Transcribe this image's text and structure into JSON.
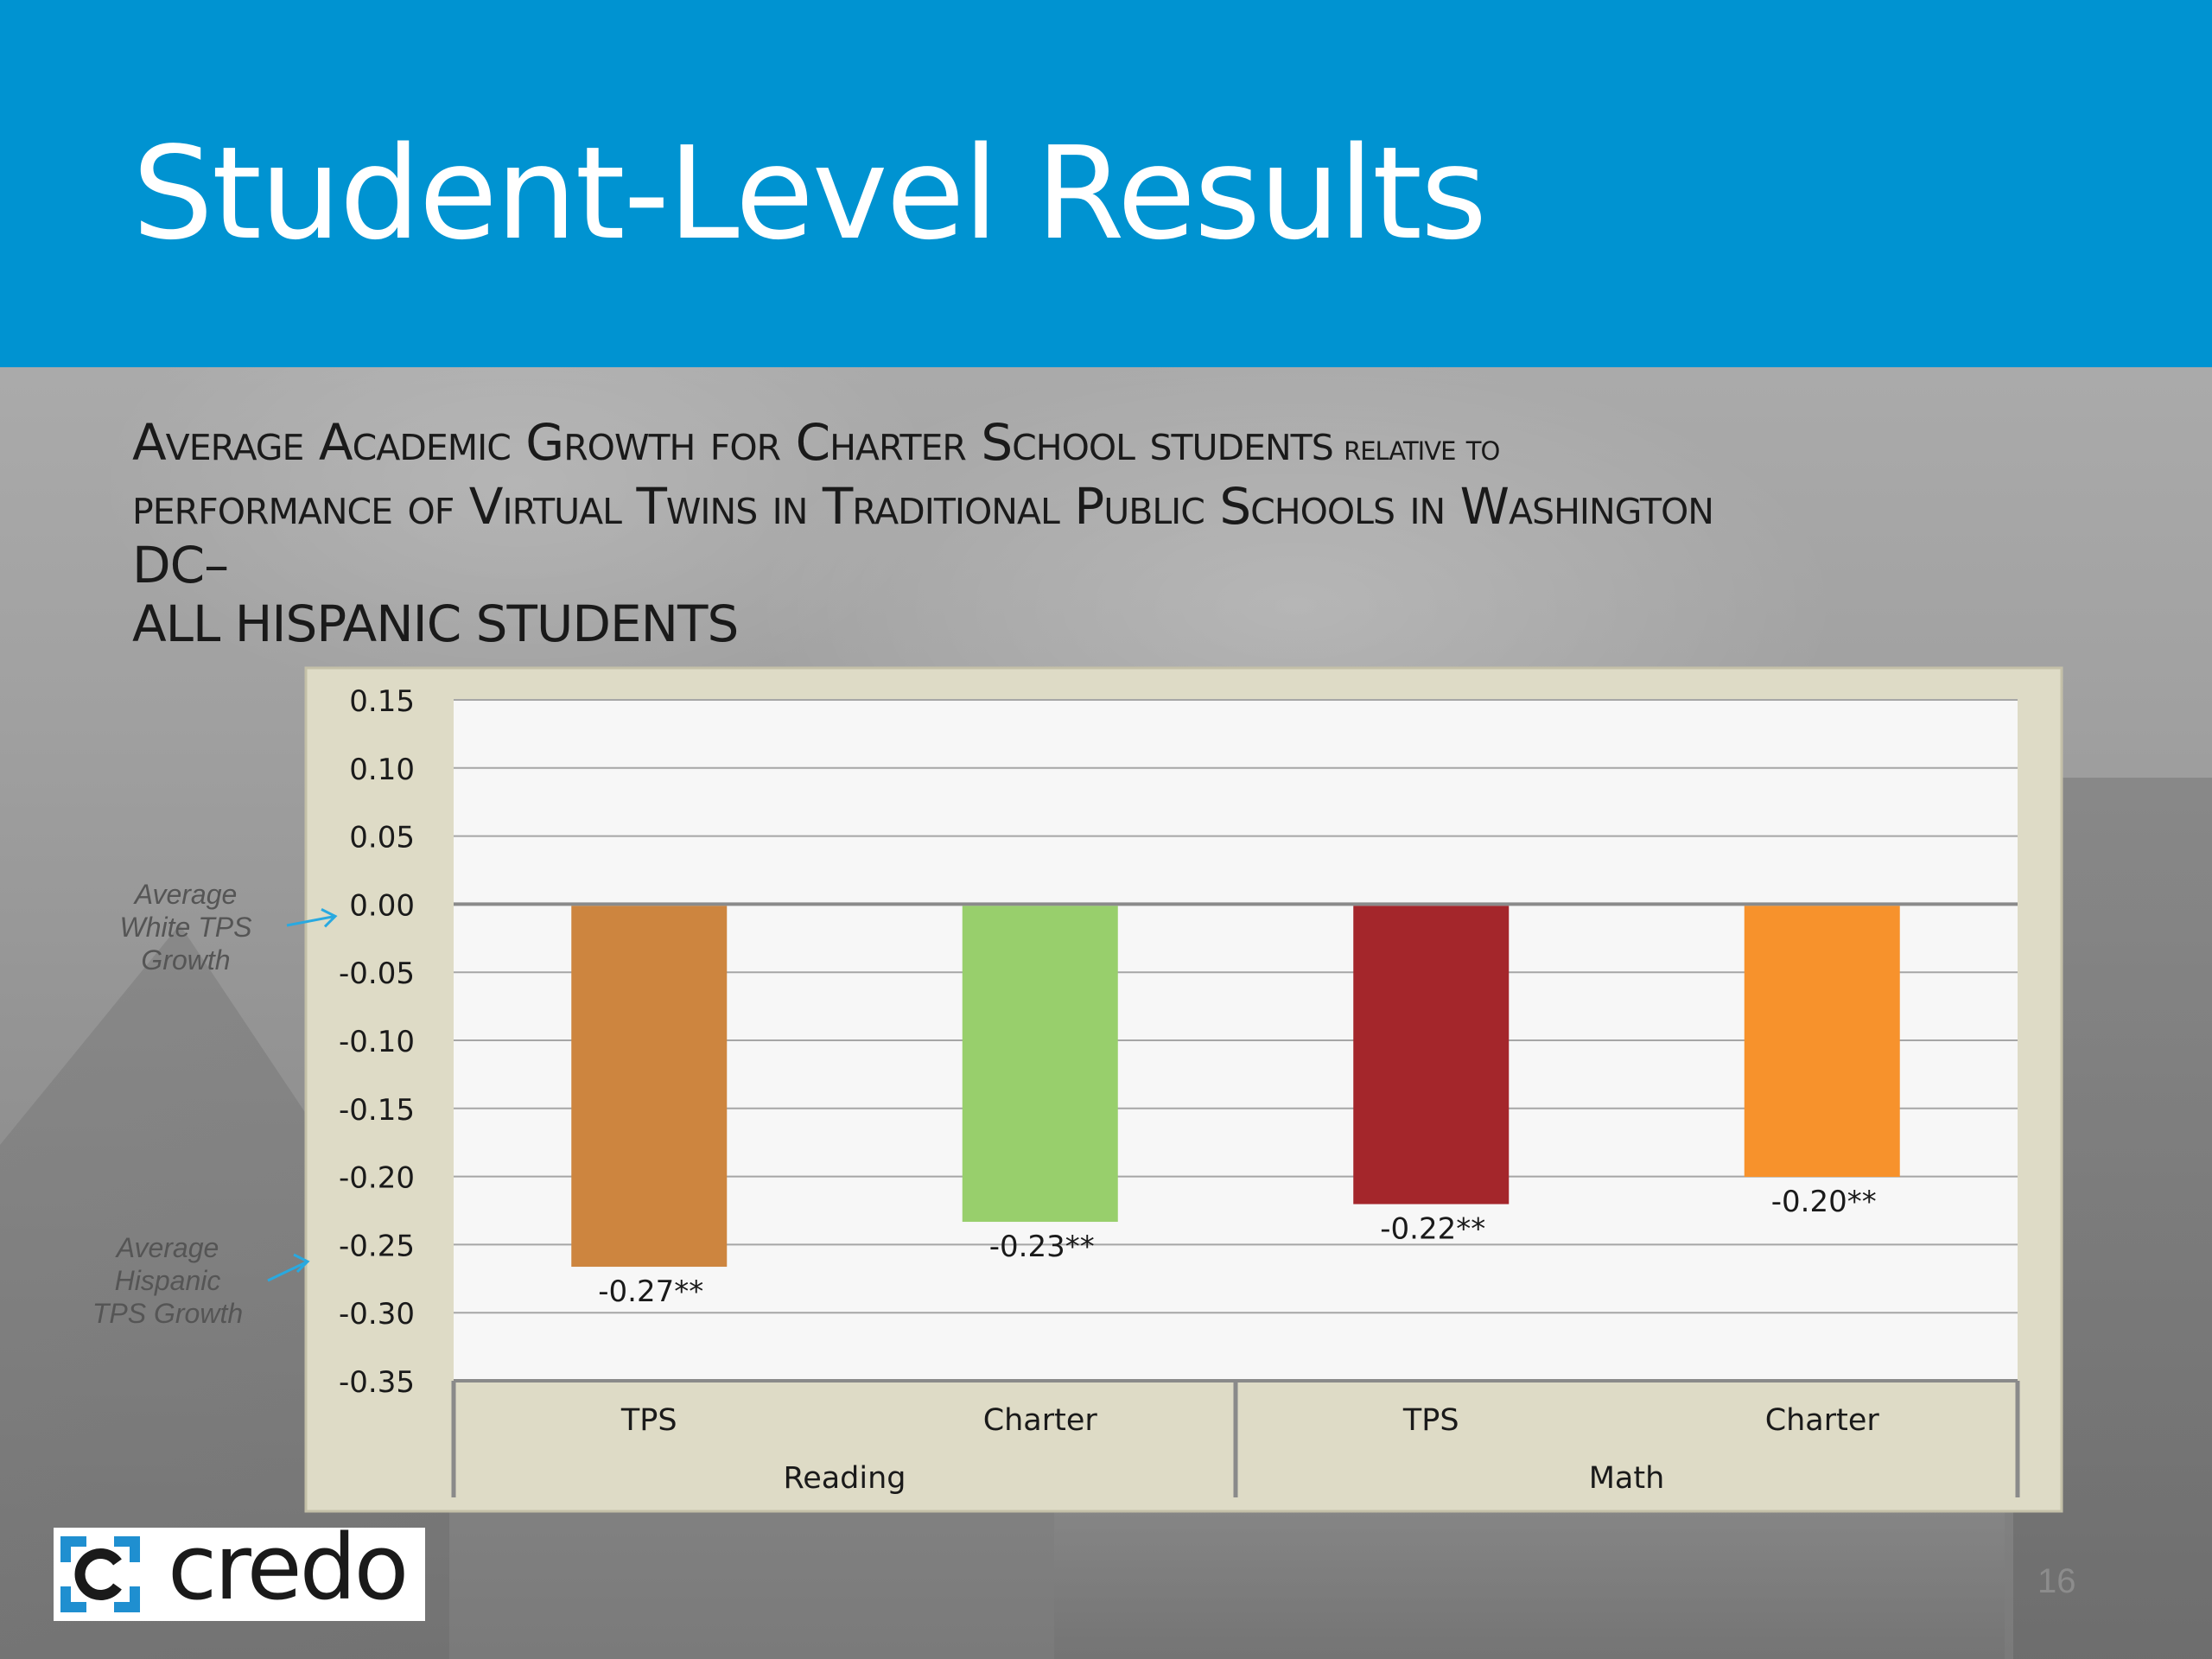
{
  "slide": {
    "title": "Student-Level Results",
    "subtitle_lines": [
      "Average Academic Growth for Charter School students relative to",
      "performance of Virtual Twins in Traditional Public Schools in Washington",
      "DC–",
      "ALL HISPANIC STUDENTS"
    ],
    "page_number": "16",
    "logo_text": "credo",
    "header_color": "#0093d1"
  },
  "annotations": [
    {
      "lines": [
        "Average",
        "White TPS",
        "Growth"
      ],
      "points_to_value": 0.0
    },
    {
      "lines": [
        "Average",
        "Hispanic",
        "TPS Growth"
      ],
      "points_to_value": -0.26
    }
  ],
  "chart_data": {
    "type": "bar",
    "title": "",
    "xlabel": "",
    "ylabel": "",
    "ylim": [
      -0.35,
      0.15
    ],
    "y_ticks": [
      "0.15",
      "0.10",
      "0.05",
      "0.00",
      "-0.05",
      "-0.10",
      "-0.15",
      "-0.20",
      "-0.25",
      "-0.30",
      "-0.35"
    ],
    "y_tick_values": [
      0.15,
      0.1,
      0.05,
      0.0,
      -0.05,
      -0.1,
      -0.15,
      -0.2,
      -0.25,
      -0.3,
      -0.35
    ],
    "grid": true,
    "legend": "none",
    "groups": [
      "Reading",
      "Math"
    ],
    "categories": [
      "TPS",
      "Charter",
      "TPS",
      "Charter"
    ],
    "category_group": [
      "Reading",
      "Reading",
      "Math",
      "Math"
    ],
    "values": [
      -0.265,
      -0.232,
      -0.219,
      -0.199
    ],
    "data_labels": [
      "-0.27**",
      "-0.23**",
      "-0.22**",
      "-0.20**"
    ],
    "colors": [
      "#cd853f",
      "#98cf6c",
      "#a4262b",
      "#f7922c"
    ],
    "plot_bg": "#f7f7f7",
    "frame_bg": "#dedbc6"
  }
}
